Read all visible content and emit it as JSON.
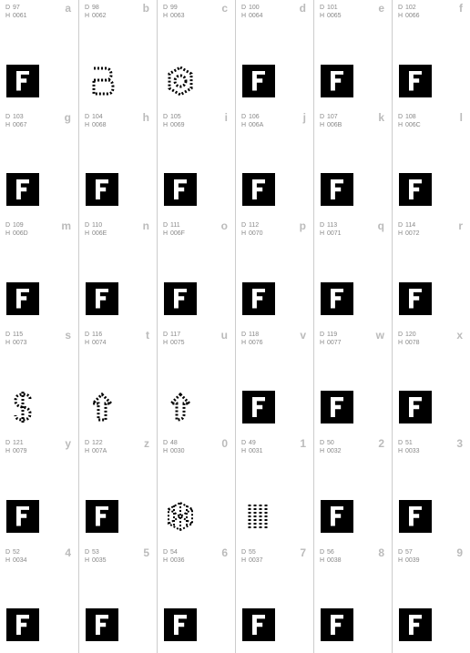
{
  "cells": [
    {
      "dec": "97",
      "hex": "0061",
      "char": "a",
      "default": true
    },
    {
      "dec": "98",
      "hex": "0062",
      "char": "b",
      "special": "B"
    },
    {
      "dec": "99",
      "hex": "0063",
      "char": "c",
      "special": "C"
    },
    {
      "dec": "100",
      "hex": "0064",
      "char": "d",
      "default": true
    },
    {
      "dec": "101",
      "hex": "0065",
      "char": "e",
      "default": true
    },
    {
      "dec": "102",
      "hex": "0066",
      "char": "f",
      "default": true
    },
    {
      "dec": "103",
      "hex": "0067",
      "char": "g",
      "default": true
    },
    {
      "dec": "104",
      "hex": "0068",
      "char": "h",
      "default": true
    },
    {
      "dec": "105",
      "hex": "0069",
      "char": "i",
      "default": true
    },
    {
      "dec": "106",
      "hex": "006A",
      "char": "j",
      "default": true
    },
    {
      "dec": "107",
      "hex": "006B",
      "char": "k",
      "default": true
    },
    {
      "dec": "108",
      "hex": "006C",
      "char": "l",
      "default": true
    },
    {
      "dec": "109",
      "hex": "006D",
      "char": "m",
      "default": true
    },
    {
      "dec": "110",
      "hex": "006E",
      "char": "n",
      "default": true
    },
    {
      "dec": "111",
      "hex": "006F",
      "char": "o",
      "default": true
    },
    {
      "dec": "112",
      "hex": "0070",
      "char": "p",
      "default": true
    },
    {
      "dec": "113",
      "hex": "0071",
      "char": "q",
      "default": true
    },
    {
      "dec": "114",
      "hex": "0072",
      "char": "r",
      "default": true
    },
    {
      "dec": "115",
      "hex": "0073",
      "char": "s",
      "special": "S"
    },
    {
      "dec": "116",
      "hex": "0074",
      "char": "t",
      "special": "T"
    },
    {
      "dec": "117",
      "hex": "0075",
      "char": "u",
      "special": "T2"
    },
    {
      "dec": "118",
      "hex": "0076",
      "char": "v",
      "default": true
    },
    {
      "dec": "119",
      "hex": "0077",
      "char": "w",
      "default": true
    },
    {
      "dec": "120",
      "hex": "0078",
      "char": "x",
      "default": true
    },
    {
      "dec": "121",
      "hex": "0079",
      "char": "y",
      "default": true
    },
    {
      "dec": "122",
      "hex": "007A",
      "char": "z",
      "default": true
    },
    {
      "dec": "48",
      "hex": "0030",
      "char": "0",
      "special": "HEX"
    },
    {
      "dec": "49",
      "hex": "0031",
      "char": "1",
      "special": "BARS"
    },
    {
      "dec": "50",
      "hex": "0032",
      "char": "2",
      "default": true
    },
    {
      "dec": "51",
      "hex": "0033",
      "char": "3",
      "default": true
    },
    {
      "dec": "52",
      "hex": "0034",
      "char": "4",
      "default": true
    },
    {
      "dec": "53",
      "hex": "0035",
      "char": "5",
      "default": true
    },
    {
      "dec": "54",
      "hex": "0036",
      "char": "6",
      "default": true
    },
    {
      "dec": "55",
      "hex": "0037",
      "char": "7",
      "default": true
    },
    {
      "dec": "56",
      "hex": "0038",
      "char": "8",
      "default": true
    },
    {
      "dec": "57",
      "hex": "0039",
      "char": "9",
      "default": true
    }
  ],
  "labels": {
    "d": "D",
    "h": "H"
  }
}
